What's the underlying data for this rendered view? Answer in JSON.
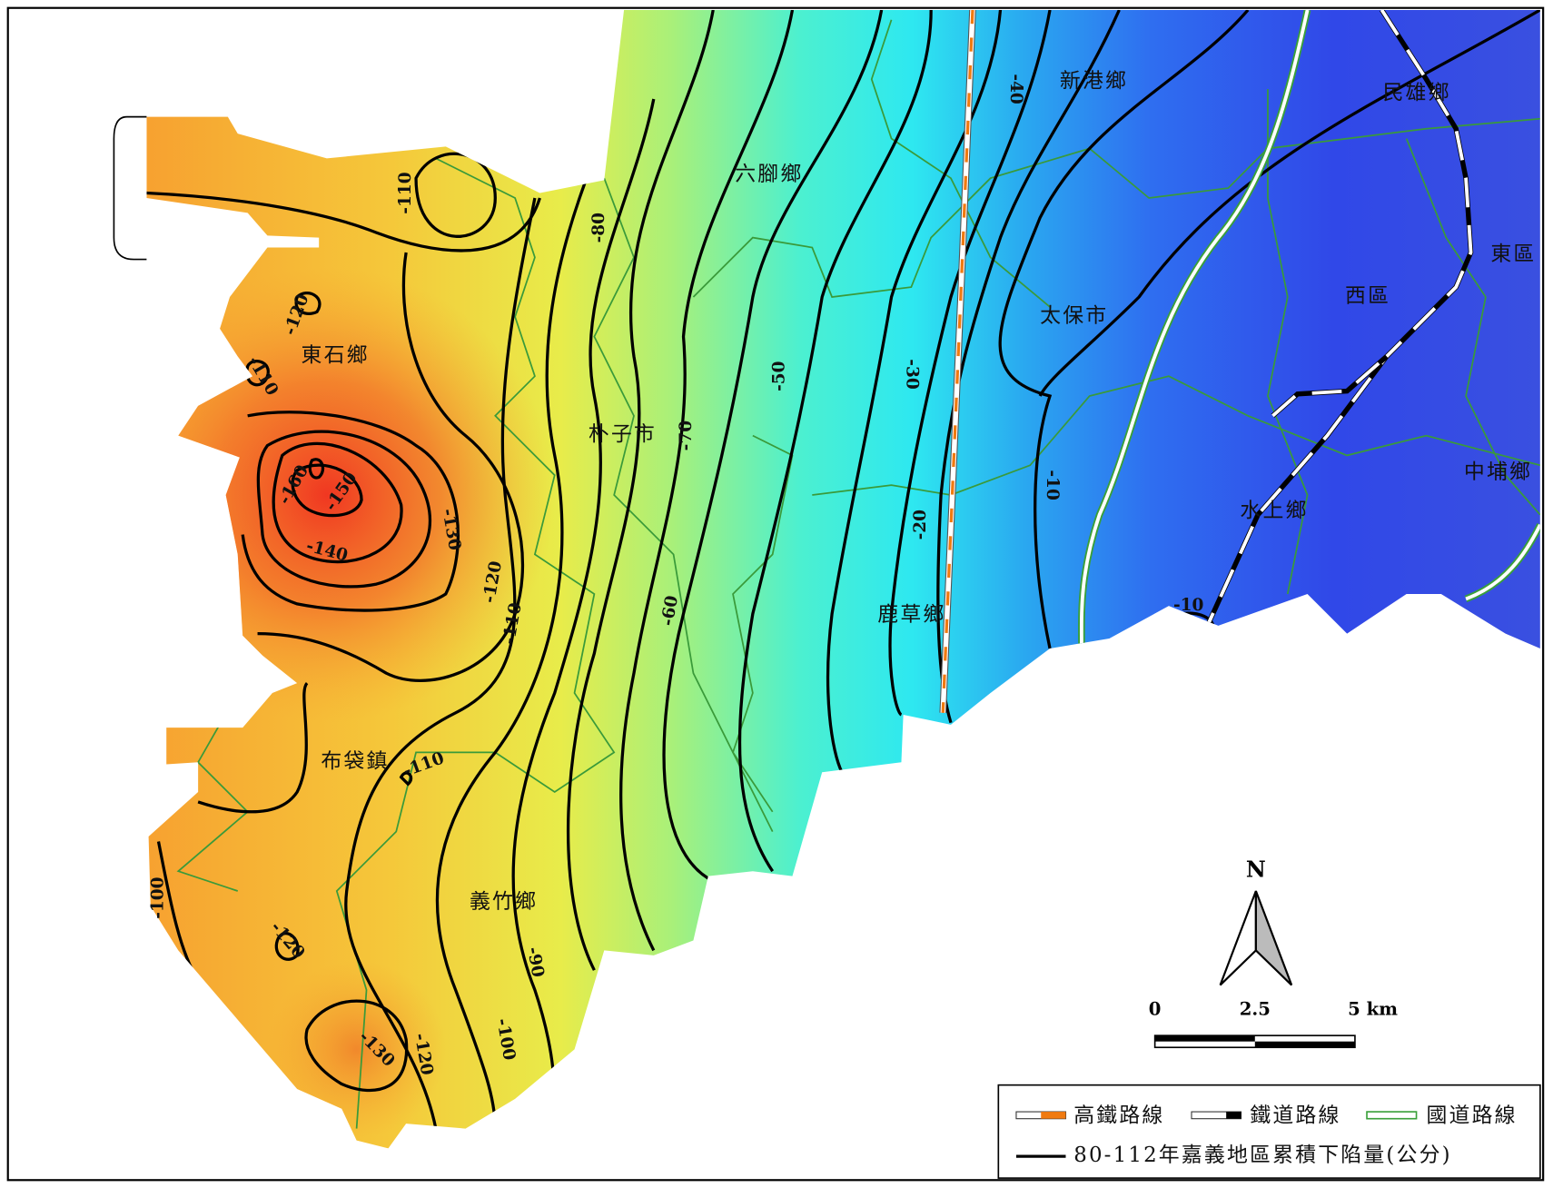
{
  "places": [
    "新港鄉",
    "民雄鄉",
    "六腳鄉",
    "東區",
    "西區",
    "太保市",
    "東石鄉",
    "朴子市",
    "中埔鄉",
    "水上鄉",
    "鹿草鄉",
    "布袋鎮",
    "義竹鄉"
  ],
  "contour_labels": [
    "-40",
    "-110",
    "-80",
    "-120",
    "-110",
    "-50",
    "-30",
    "-70",
    "-10",
    "-160",
    "-150",
    "-130",
    "-20",
    "-140",
    "-120",
    "-10",
    "-110",
    "-60",
    "-110",
    "-100",
    "-120",
    "-90",
    "-100",
    "-130",
    "-120"
  ],
  "north": "N",
  "scale_bar": {
    "labels": [
      "0",
      "2.5",
      "5 km"
    ]
  },
  "legend": {
    "items": [
      "高鐵路線",
      "鐵道路線",
      "國道路線",
      "80-112年嘉義地區累積下陷量(公分)"
    ]
  }
}
